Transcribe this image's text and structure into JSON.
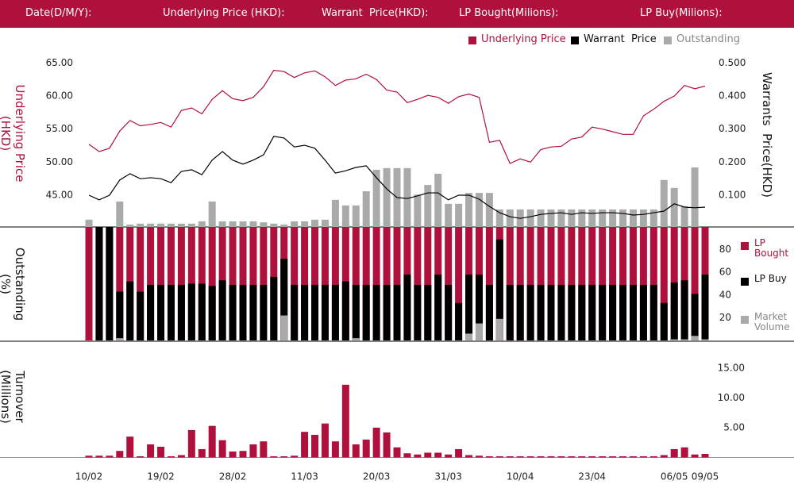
{
  "header": {
    "fields": [
      "Date(D/M/Y):",
      "Underlying Price (HKD):",
      "Warrant  Price(HKD):",
      "LP Bought(Milions):",
      "LP Buy(Milions):"
    ]
  },
  "chart_data": [
    {
      "type": "combo",
      "ylabel": "Underlying Price (HKD)",
      "y2label": "Warrants  Price(HKD)",
      "ylim": [
        40.2,
        66.6
      ],
      "yticks": [
        {
          "value": 45,
          "label": "45.00"
        },
        {
          "value": 50,
          "label": "50.00"
        },
        {
          "value": 55,
          "label": "55.00"
        },
        {
          "value": 60,
          "label": "60.00"
        },
        {
          "value": 65,
          "label": "65.00"
        }
      ],
      "y2lim": [
        0.004,
        0.532
      ],
      "y2ticks": [
        {
          "value": 0.1,
          "label": "0.100"
        },
        {
          "value": 0.2,
          "label": "0.200"
        },
        {
          "value": 0.3,
          "label": "0.300"
        },
        {
          "value": 0.4,
          "label": "0.400"
        },
        {
          "value": 0.5,
          "label": "0.500"
        }
      ],
      "series": [
        {
          "name": "Underlying Price",
          "color": "#b0103c",
          "type": "line",
          "values": [
            52.7,
            51.6,
            52.1,
            54.7,
            56.3,
            55.5,
            55.7,
            56.0,
            55.3,
            57.8,
            58.2,
            57.3,
            59.5,
            60.8,
            59.6,
            59.3,
            59.8,
            61.4,
            63.9,
            63.7,
            62.8,
            63.5,
            63.8,
            62.9,
            61.6,
            62.4,
            62.6,
            63.3,
            62.5,
            60.9,
            60.6,
            59.0,
            59.5,
            60.1,
            59.8,
            58.9,
            59.9,
            60.3,
            59.8,
            53.0,
            53.3,
            49.8,
            50.5,
            50.0,
            51.9,
            52.3,
            52.4,
            53.5,
            53.8,
            55.3,
            55.0,
            54.6,
            54.2,
            54.2,
            57.0,
            58.0,
            59.2,
            60.0,
            61.6,
            61.1,
            61.5
          ]
        },
        {
          "name": "Warrant  Price",
          "color": "#000000",
          "type": "line",
          "axis": "y2",
          "values": [
            0.1,
            0.086,
            0.1,
            0.146,
            0.165,
            0.15,
            0.153,
            0.15,
            0.138,
            0.172,
            0.177,
            0.162,
            0.206,
            0.232,
            0.206,
            0.194,
            0.206,
            0.222,
            0.278,
            0.273,
            0.246,
            0.251,
            0.242,
            0.206,
            0.167,
            0.174,
            0.184,
            0.189,
            0.153,
            0.119,
            0.093,
            0.09,
            0.098,
            0.107,
            0.107,
            0.086,
            0.1,
            0.1,
            0.088,
            0.066,
            0.047,
            0.035,
            0.03,
            0.035,
            0.042,
            0.045,
            0.047,
            0.042,
            0.047,
            0.045,
            0.047,
            0.047,
            0.045,
            0.04,
            0.042,
            0.047,
            0.052,
            0.074,
            0.064,
            0.062,
            0.064
          ]
        },
        {
          "name": "Outstanding",
          "color": "#aaaaaa",
          "type": "bar",
          "axis": "y2",
          "values": [
            0.026,
            0,
            0,
            0.081,
            0.011,
            0.014,
            0.014,
            0.014,
            0.014,
            0.014,
            0.014,
            0.021,
            0.081,
            0.021,
            0.021,
            0.021,
            0.021,
            0.018,
            0.014,
            0.011,
            0.021,
            0.021,
            0.026,
            0.026,
            0.086,
            0.069,
            0.069,
            0.112,
            0.177,
            0.182,
            0.182,
            0.182,
            0.102,
            0.131,
            0.165,
            0.074,
            0.074,
            0.107,
            0.107,
            0.107,
            0.057,
            0.057,
            0.057,
            0.057,
            0.057,
            0.057,
            0.057,
            0.057,
            0.057,
            0.057,
            0.057,
            0.057,
            0.057,
            0.057,
            0.057,
            0.057,
            0.146,
            0.122,
            0.066,
            0.184,
            0
          ]
        }
      ]
    },
    {
      "type": "bar",
      "ylabel": "Outstanding (%)",
      "ylim": [
        0,
        100
      ],
      "yticks": [
        20,
        40,
        60,
        80
      ],
      "series": [
        {
          "name": "LP Bought",
          "color": "#b0103c",
          "values": [
            100,
            100,
            100,
            100,
            100,
            100,
            100,
            100,
            100,
            100,
            100,
            100,
            100,
            100,
            100,
            100,
            100,
            100,
            100,
            100,
            100,
            100,
            100,
            100,
            100,
            100,
            100,
            100,
            100,
            100,
            100,
            100,
            100,
            100,
            100,
            100,
            100,
            100,
            100,
            100,
            100,
            100,
            100,
            100,
            100,
            100,
            100,
            100,
            100,
            100,
            100,
            100,
            100,
            100,
            100,
            100,
            100,
            100,
            100,
            100,
            100
          ]
        },
        {
          "name": "LP Buy",
          "color": "#000000",
          "values": [
            0,
            100,
            100,
            43,
            52,
            43,
            49,
            49,
            49,
            49,
            50,
            50,
            48,
            53,
            49,
            49,
            49,
            49,
            56,
            72,
            49,
            49,
            49,
            49,
            49,
            52,
            49,
            49,
            49,
            49,
            49,
            58,
            49,
            49,
            58,
            49,
            33,
            58,
            58,
            49,
            89,
            49,
            49,
            49,
            49,
            49,
            49,
            49,
            49,
            49,
            49,
            49,
            49,
            49,
            49,
            49,
            33,
            51,
            53,
            41,
            58
          ]
        },
        {
          "name": "Market Volume",
          "color": "#aaaaaa",
          "values": [
            0,
            0,
            0,
            2,
            0,
            0,
            0,
            0,
            0,
            0,
            0,
            0,
            0,
            0,
            0,
            0,
            0,
            0,
            0,
            22,
            0,
            0,
            0,
            0,
            0,
            0,
            2,
            0,
            0,
            0,
            0,
            0,
            0,
            0,
            0,
            0,
            0,
            6,
            15,
            0,
            19,
            0,
            0,
            0,
            0,
            0,
            0,
            0,
            0,
            0,
            0,
            0,
            0,
            0,
            0,
            0,
            0,
            1,
            1,
            4,
            1
          ]
        }
      ]
    },
    {
      "type": "bar",
      "ylabel": "Turnover (Millions)",
      "ylim": [
        0,
        19.5
      ],
      "yticks": [
        {
          "value": 5,
          "label": "5.00"
        },
        {
          "value": 10,
          "label": "10.00"
        },
        {
          "value": 15,
          "label": "15.00"
        }
      ],
      "color": "#b0103c",
      "categories": [
        "10/02",
        null,
        null,
        null,
        null,
        null,
        null,
        "19/02",
        null,
        null,
        null,
        null,
        null,
        null,
        "28/02",
        null,
        null,
        null,
        null,
        null,
        null,
        "11/03",
        null,
        null,
        null,
        null,
        null,
        null,
        "20/03",
        null,
        null,
        null,
        null,
        null,
        null,
        "31/03",
        null,
        null,
        null,
        null,
        null,
        null,
        "10/04",
        null,
        null,
        null,
        null,
        null,
        null,
        "23/04",
        null,
        null,
        null,
        null,
        null,
        null,
        null,
        "06/05",
        null,
        null,
        "09/05"
      ],
      "values": [
        0.3,
        0.3,
        0.3,
        1.1,
        3.5,
        0.2,
        2.2,
        1.8,
        0.2,
        0.4,
        4.6,
        1.4,
        5.3,
        2.9,
        1.0,
        1.1,
        2.2,
        2.7,
        0.2,
        0.2,
        0.3,
        4.3,
        3.8,
        5.7,
        2.7,
        12.2,
        2.2,
        3.0,
        5.0,
        4.2,
        1.7,
        0.7,
        0.5,
        0.8,
        0.8,
        0.5,
        1.4,
        0.4,
        0.3,
        0.2,
        0.2,
        0.2,
        0.2,
        0.2,
        0.2,
        0.2,
        0.2,
        0.2,
        0.2,
        0.2,
        0.2,
        0.2,
        0.2,
        0.2,
        0.2,
        0.2,
        0.4,
        1.4,
        1.7,
        0.5,
        0.6
      ]
    }
  ]
}
